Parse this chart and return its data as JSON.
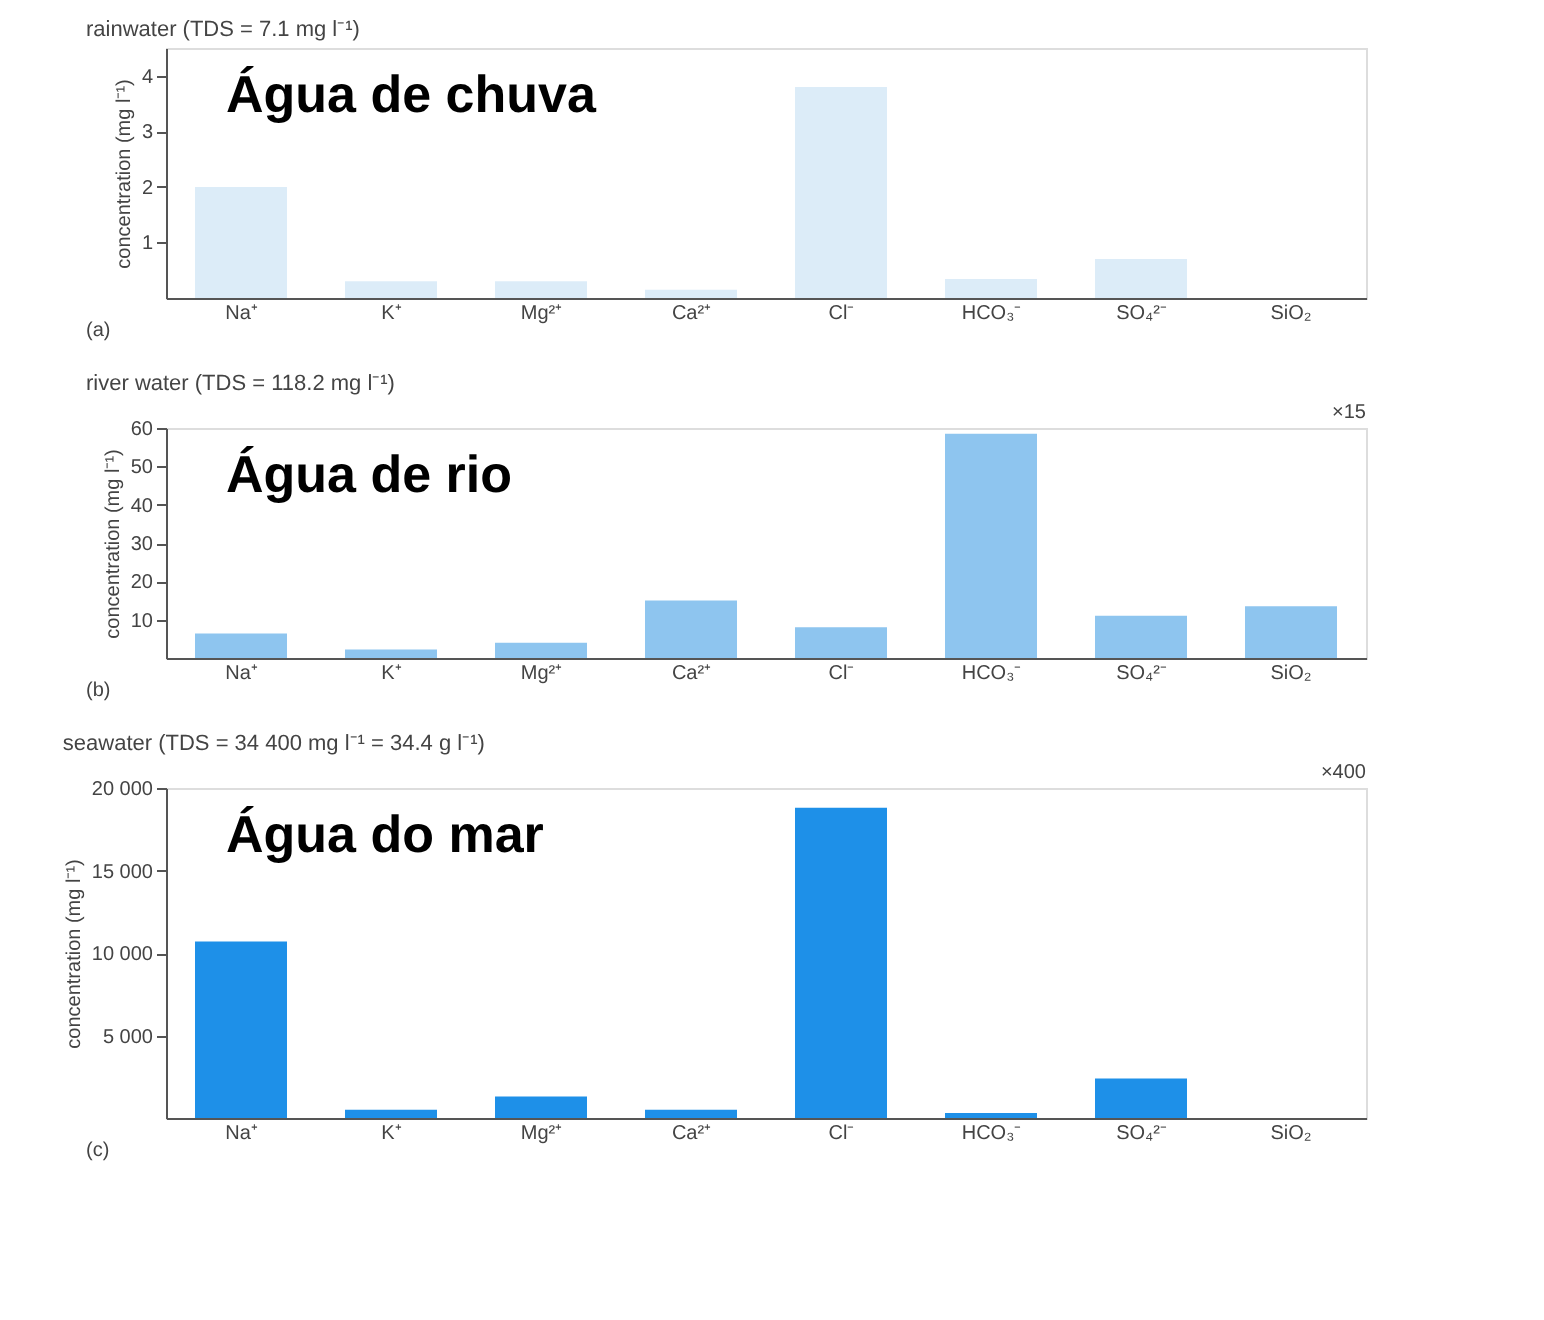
{
  "chart_data": [
    {
      "type": "bar",
      "title": "rainwater (TDS = 7.1 mg l⁻¹)",
      "ylabel": "concentration (mg l⁻¹)",
      "categories": [
        "Na⁺",
        "K⁺",
        "Mg²⁺",
        "Ca²⁺",
        "Cl⁻",
        "HCO₃⁻",
        "SO₄²⁻",
        "SiO₂"
      ],
      "values": [
        2.0,
        0.3,
        0.3,
        0.15,
        3.8,
        0.34,
        0.7,
        null
      ],
      "color": "#dcecf8",
      "ylim": [
        0,
        4.5
      ],
      "yticks": [
        1,
        2,
        3,
        4
      ],
      "grid": false,
      "annotations": [
        "Água de chuva",
        "(a)"
      ]
    },
    {
      "type": "bar",
      "title": "river water (TDS = 118.2 mg l⁻¹)",
      "ylabel": "concentration (mg l⁻¹)",
      "categories": [
        "Na⁺",
        "K⁺",
        "Mg²⁺",
        "Ca²⁺",
        "Cl⁻",
        "HCO₃⁻",
        "SO₄²⁻",
        "SiO₂"
      ],
      "values": [
        6.4,
        2.2,
        4,
        15,
        8,
        58.5,
        11,
        13.5
      ],
      "color": "#8ec5ef",
      "ylim": [
        0,
        60
      ],
      "yticks": [
        10,
        20,
        30,
        40,
        50,
        60
      ],
      "grid": false,
      "annotations": [
        "Água de rio",
        "(b)",
        "×15"
      ]
    },
    {
      "type": "bar",
      "title": "seawater (TDS = 34 400 mg l⁻¹ = 34.4 g l⁻¹)",
      "ylabel": "concentration (mg l⁻¹)",
      "categories": [
        "Na⁺",
        "K⁺",
        "Mg²⁺",
        "Ca²⁺",
        "Cl⁻",
        "HCO₃⁻",
        "SO₄²⁻",
        "SiO₂"
      ],
      "values": [
        10700,
        500,
        1300,
        500,
        18800,
        300,
        2400,
        null
      ],
      "color": "#1e90e8",
      "ylim": [
        0,
        20000
      ],
      "yticks": [
        {
          "value": 5000,
          "label": "5 000"
        },
        {
          "value": 10000,
          "label": "10 000"
        },
        {
          "value": 15000,
          "label": "15 000"
        },
        {
          "value": 20000,
          "label": "20 000"
        }
      ],
      "grid": false,
      "annotations": [
        "Água do mar",
        "(c)",
        "×400"
      ]
    }
  ]
}
